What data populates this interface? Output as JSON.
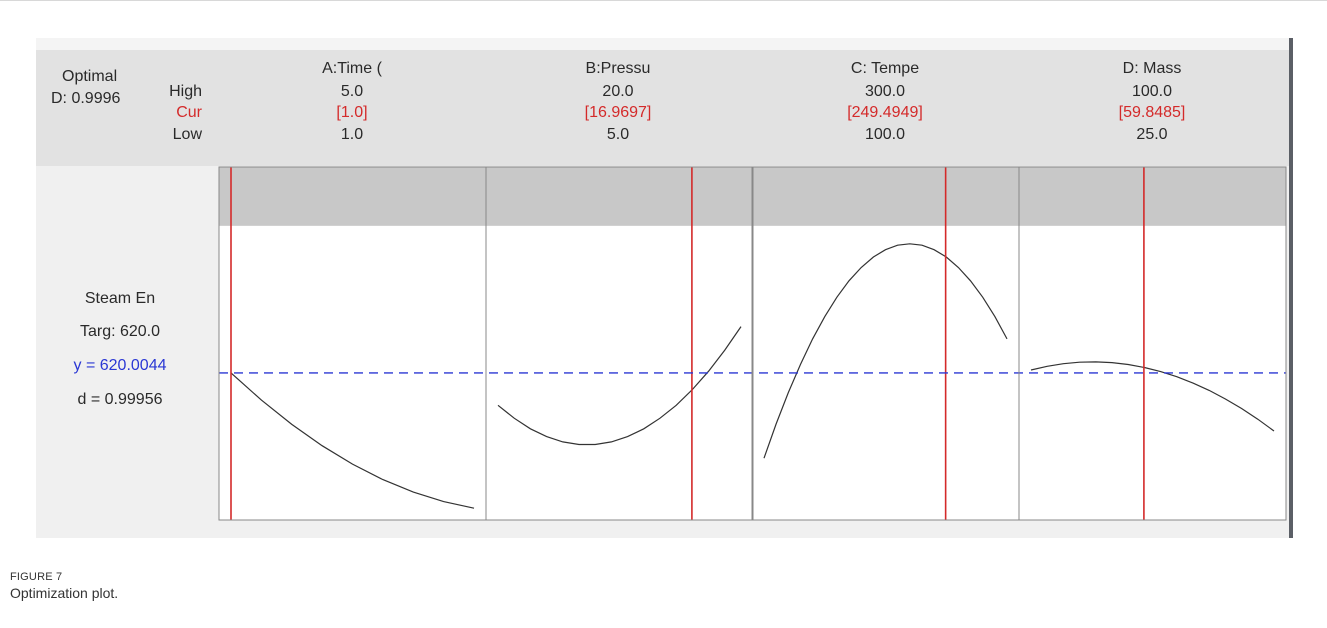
{
  "summary": {
    "optimal_label": "Optimal",
    "desirability": "D: 0.9996"
  },
  "row_labels": {
    "high": "High",
    "cur": "Cur",
    "low": "Low"
  },
  "response": {
    "name": "Steam En",
    "target": "Targ: 620.0",
    "y_value": "y = 620.0044",
    "d_value": "d = 0.99956"
  },
  "factors": [
    {
      "name": "A:Time (",
      "high": "5.0",
      "cur": "[1.0]",
      "low": "1.0"
    },
    {
      "name": "B:Pressu",
      "high": "20.0",
      "cur": "[16.9697]",
      "low": "5.0"
    },
    {
      "name": "C: Tempe",
      "high": "300.0",
      "cur": "[249.4949]",
      "low": "100.0"
    },
    {
      "name": "D: Mass",
      "high": "100.0",
      "cur": "[59.8485]",
      "low": "25.0"
    }
  ],
  "caption": {
    "label": "FIGURE 7",
    "text": "Optimization plot."
  },
  "colors": {
    "current_line": "#d42a2a",
    "target_line": "#2a37d4",
    "curve": "#333333",
    "shaded_region": "#c8c8c8",
    "plot_bg": "#ffffff",
    "frame": "#888888"
  },
  "chart_data": {
    "type": "line",
    "title": "",
    "response_target": 620.0,
    "response_current": 620.0044,
    "ylim": [
      520,
      760
    ],
    "shaded_above": 720,
    "panels": [
      {
        "factor": "A:Time (",
        "xlim": [
          1.0,
          5.0
        ],
        "current": 1.0,
        "x": [
          1.0,
          1.5,
          2.0,
          2.5,
          3.0,
          3.5,
          4.0,
          4.5,
          5.0
        ],
        "y": [
          620.0,
          601.5,
          585.0,
          570.5,
          558.0,
          547.5,
          539.0,
          532.5,
          528.0
        ]
      },
      {
        "factor": "B:Pressu",
        "xlim": [
          5.0,
          20.0
        ],
        "current": 16.9697,
        "x": [
          5.0,
          6.0,
          7.0,
          8.0,
          9.0,
          10.0,
          11.0,
          12.0,
          13.0,
          14.0,
          15.0,
          16.0,
          17.0,
          18.0,
          19.0,
          20.0
        ],
        "y": [
          598.0,
          589.2,
          582.0,
          576.7,
          573.1,
          571.3,
          571.3,
          573.1,
          576.7,
          582.0,
          589.2,
          598.0,
          608.7,
          621.2,
          635.5,
          651.5
        ]
      },
      {
        "factor": "C: Tempe",
        "xlim": [
          100.0,
          300.0
        ],
        "current": 249.4949,
        "x": [
          100,
          110,
          120,
          130,
          140,
          150,
          160,
          170,
          180,
          190,
          200,
          210,
          220,
          230,
          240,
          250,
          260,
          270,
          280,
          290,
          300
        ],
        "y": [
          562.0,
          585.3,
          606.6,
          625.8,
          643.1,
          658.3,
          671.5,
          682.6,
          691.7,
          698.8,
          703.8,
          706.8,
          707.8,
          706.8,
          703.8,
          698.8,
          691.7,
          682.6,
          671.5,
          658.3,
          643.1
        ]
      },
      {
        "factor": "D: Mass",
        "xlim": [
          25.0,
          100.0
        ],
        "current": 59.8485,
        "x": [
          25,
          30,
          35,
          40,
          45,
          50,
          55,
          60,
          65,
          70,
          75,
          80,
          85,
          90,
          95,
          100
        ],
        "y": [
          622.0,
          624.5,
          626.3,
          627.3,
          627.5,
          627.0,
          625.7,
          623.7,
          620.9,
          617.4,
          613.1,
          608.1,
          602.3,
          595.8,
          588.5,
          580.5
        ]
      }
    ]
  }
}
